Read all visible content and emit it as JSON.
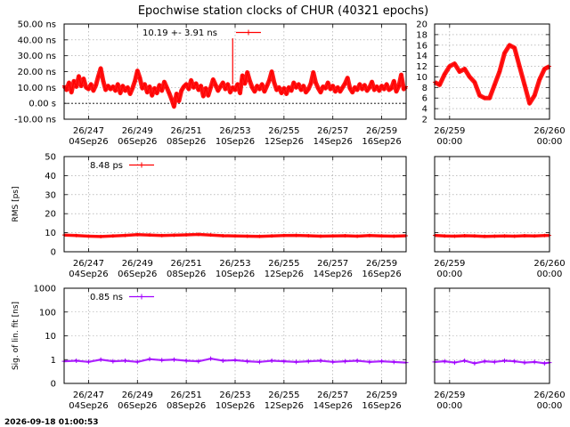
{
  "title": "Epochwise station clocks of CHUR (40321 epochs)",
  "footer_timestamp": "2026-09-18 01:00:53",
  "colors": {
    "clock": "#ff0000",
    "rms": "#ff0000",
    "sig": "#a000ff"
  },
  "chart_data": [
    {
      "id": "clock-main",
      "type": "line",
      "ylabel": "",
      "ylim": [
        -10,
        50
      ],
      "yticks": [
        -10,
        0,
        10,
        20,
        30,
        40,
        50
      ],
      "ytick_labels": [
        "-10.00 ns",
        "0.00  s",
        "10.00 ns",
        "20.00 ns",
        "30.00 ns",
        "40.00 ns",
        "50.00 ns"
      ],
      "xlim": [
        246.0,
        260.0
      ],
      "xticks": [
        247,
        249,
        251,
        253,
        255,
        257,
        259
      ],
      "xtick_labels": [
        [
          "26/247",
          "04Sep26"
        ],
        [
          "26/249",
          "06Sep26"
        ],
        [
          "26/251",
          "08Sep26"
        ],
        [
          "26/253",
          "10Sep26"
        ],
        [
          "26/255",
          "12Sep26"
        ],
        [
          "26/257",
          "14Sep26"
        ],
        [
          "26/259",
          "16Sep26"
        ]
      ],
      "legend_text": "10.19 +-    3.91 ns",
      "zero_line": true,
      "series": [
        {
          "x": [
            246.0,
            246.1,
            246.2,
            246.3,
            246.4,
            246.5,
            246.6,
            246.7,
            246.8,
            246.9,
            247.0,
            247.1,
            247.2,
            247.3,
            247.4,
            247.5,
            247.6,
            247.7,
            247.8,
            247.9,
            248.0,
            248.1,
            248.2,
            248.3,
            248.4,
            248.5,
            248.6,
            248.7,
            248.8,
            248.9,
            249.0,
            249.1,
            249.2,
            249.3,
            249.4,
            249.5,
            249.6,
            249.7,
            249.8,
            249.9,
            250.0,
            250.1,
            250.2,
            250.3,
            250.4,
            250.5,
            250.6,
            250.7,
            250.8,
            250.9,
            251.0,
            251.1,
            251.2,
            251.3,
            251.4,
            251.5,
            251.6,
            251.7,
            251.8,
            251.9,
            252.0,
            252.1,
            252.2,
            252.3,
            252.4,
            252.5,
            252.6,
            252.7,
            252.8,
            252.9,
            253.0,
            253.1,
            253.2,
            253.3,
            253.4,
            253.5,
            253.6,
            253.7,
            253.8,
            253.9,
            254.0,
            254.1,
            254.2,
            254.3,
            254.4,
            254.5,
            254.6,
            254.7,
            254.8,
            254.9,
            255.0,
            255.1,
            255.2,
            255.3,
            255.4,
            255.5,
            255.6,
            255.7,
            255.8,
            255.9,
            256.0,
            256.1,
            256.2,
            256.3,
            256.4,
            256.5,
            256.6,
            256.7,
            256.8,
            256.9,
            257.0,
            257.1,
            257.2,
            257.3,
            257.4,
            257.5,
            257.6,
            257.7,
            257.8,
            257.9,
            258.0,
            258.1,
            258.2,
            258.3,
            258.4,
            258.5,
            258.6,
            258.7,
            258.8,
            258.9,
            259.0,
            259.1,
            259.2,
            259.3,
            259.4,
            259.5,
            259.6,
            259.7,
            259.8,
            259.9,
            260.0
          ],
          "y": [
            11.0,
            8.5,
            13.0,
            7.0,
            14.0,
            10.5,
            17.0,
            11.0,
            15.5,
            10.0,
            9.0,
            12.0,
            8.0,
            11.5,
            17.0,
            22.0,
            14.0,
            8.5,
            11.0,
            9.0,
            10.5,
            8.0,
            12.0,
            6.5,
            11.0,
            8.0,
            10.0,
            6.0,
            9.5,
            14.0,
            20.5,
            16.0,
            9.5,
            12.0,
            7.0,
            10.5,
            5.0,
            9.5,
            6.5,
            11.5,
            8.0,
            13.5,
            10.0,
            6.5,
            2.5,
            -2.0,
            6.0,
            1.5,
            8.0,
            10.5,
            12.0,
            9.0,
            14.5,
            10.0,
            12.5,
            8.5,
            11.0,
            4.5,
            9.5,
            5.0,
            10.0,
            15.0,
            11.5,
            8.0,
            10.5,
            13.0,
            9.0,
            12.0,
            7.0,
            10.0,
            8.5,
            12.0,
            6.5,
            17.5,
            12.5,
            19.5,
            14.0,
            10.0,
            7.5,
            11.0,
            9.0,
            12.0,
            7.5,
            11.0,
            14.5,
            20.0,
            13.0,
            8.5,
            10.0,
            6.5,
            9.5,
            6.0,
            10.0,
            8.0,
            13.0,
            10.0,
            12.0,
            8.5,
            11.0,
            7.0,
            9.0,
            12.5,
            19.5,
            13.0,
            9.5,
            7.0,
            10.5,
            9.5,
            13.0,
            9.0,
            11.0,
            7.5,
            10.0,
            7.5,
            10.0,
            12.5,
            16.0,
            9.5,
            7.0,
            10.0,
            8.5,
            12.0,
            9.0,
            11.5,
            8.0,
            10.0,
            13.5,
            8.5,
            10.5,
            8.0,
            11.0,
            9.0,
            12.0,
            8.5,
            9.5,
            14.0,
            7.5,
            11.0,
            18.0,
            9.0,
            10.5
          ]
        }
      ]
    },
    {
      "id": "clock-zoom",
      "type": "line",
      "ylabel": "",
      "ylim": [
        2,
        20
      ],
      "yticks": [
        2,
        4,
        6,
        8,
        10,
        12,
        14,
        16,
        18,
        20
      ],
      "ytick_labels": [
        "2",
        "4",
        "6",
        "8",
        "10",
        "12",
        "14",
        "16",
        "18",
        "20"
      ],
      "xlim": [
        258.85,
        260.0
      ],
      "xticks": [
        259,
        260
      ],
      "xtick_labels": [
        [
          "26/259",
          "00:00"
        ],
        [
          "26/260",
          "00:00"
        ]
      ],
      "series": [
        {
          "x": [
            258.85,
            258.9,
            258.95,
            259.0,
            259.05,
            259.1,
            259.15,
            259.2,
            259.25,
            259.3,
            259.35,
            259.4,
            259.45,
            259.5,
            259.55,
            259.6,
            259.65,
            259.7,
            259.75,
            259.8,
            259.85,
            259.9,
            259.95,
            260.0
          ],
          "y": [
            9.0,
            8.5,
            10.5,
            12.0,
            12.5,
            11.0,
            11.5,
            10.0,
            9.0,
            6.5,
            6.0,
            6.0,
            8.5,
            11.0,
            14.5,
            16.0,
            15.5,
            12.0,
            8.5,
            5.0,
            6.5,
            9.5,
            11.5,
            12.0
          ]
        }
      ]
    },
    {
      "id": "rms-main",
      "type": "line",
      "ylabel": "RMS [ps]",
      "ylim": [
        0,
        50
      ],
      "yticks": [
        0,
        10,
        20,
        30,
        40,
        50
      ],
      "ytick_labels": [
        "0",
        "10",
        "20",
        "30",
        "40",
        "50"
      ],
      "xlim": [
        246.0,
        260.0
      ],
      "xticks": [
        247,
        249,
        251,
        253,
        255,
        257,
        259
      ],
      "xtick_labels": [
        [
          "26/247",
          "04Sep26"
        ],
        [
          "26/249",
          "06Sep26"
        ],
        [
          "26/251",
          "08Sep26"
        ],
        [
          "26/253",
          "10Sep26"
        ],
        [
          "26/255",
          "12Sep26"
        ],
        [
          "26/257",
          "14Sep26"
        ],
        [
          "26/259",
          "16Sep26"
        ]
      ],
      "legend_text": "8.48 ps",
      "series": [
        {
          "x": [
            246.0,
            246.5,
            247.0,
            247.5,
            248.0,
            248.5,
            249.0,
            249.5,
            250.0,
            250.5,
            251.0,
            251.5,
            252.0,
            252.5,
            253.0,
            253.5,
            254.0,
            254.5,
            255.0,
            255.5,
            256.0,
            256.5,
            257.0,
            257.5,
            258.0,
            258.5,
            259.0,
            259.5,
            260.0
          ],
          "y": [
            8.8,
            8.5,
            8.2,
            8.0,
            8.3,
            8.6,
            9.0,
            8.8,
            8.5,
            8.7,
            8.9,
            9.1,
            8.8,
            8.4,
            8.3,
            8.2,
            8.1,
            8.3,
            8.5,
            8.6,
            8.4,
            8.2,
            8.3,
            8.4,
            8.2,
            8.5,
            8.3,
            8.2,
            8.4
          ]
        }
      ]
    },
    {
      "id": "rms-zoom",
      "type": "line",
      "ylabel": "",
      "ylim": [
        0,
        50
      ],
      "yticks": [
        0,
        10,
        20,
        30,
        40,
        50
      ],
      "ytick_labels": [],
      "xlim": [
        258.85,
        260.0
      ],
      "xticks": [
        259,
        260
      ],
      "xtick_labels": [
        [
          "26/259",
          "00:00"
        ],
        [
          "26/260",
          "00:00"
        ]
      ],
      "series": [
        {
          "x": [
            258.85,
            258.95,
            259.05,
            259.15,
            259.25,
            259.35,
            259.45,
            259.55,
            259.65,
            259.75,
            259.85,
            259.95,
            260.0
          ],
          "y": [
            8.6,
            8.3,
            8.2,
            8.4,
            8.3,
            8.1,
            8.2,
            8.3,
            8.2,
            8.4,
            8.3,
            8.5,
            8.6
          ]
        }
      ]
    },
    {
      "id": "sig-main",
      "type": "scatter",
      "ylabel": "Sig. of lin. fit [ns]",
      "ylog": true,
      "ylim": [
        0.1,
        1000
      ],
      "yticks": [
        0.1,
        1,
        10,
        100,
        1000
      ],
      "ytick_labels": [
        "0",
        "1",
        "10",
        "100",
        "1000"
      ],
      "xlim": [
        246.0,
        260.0
      ],
      "xticks": [
        247,
        249,
        251,
        253,
        255,
        257,
        259
      ],
      "xtick_labels": [
        [
          "26/247",
          "04Sep26"
        ],
        [
          "26/249",
          "06Sep26"
        ],
        [
          "26/251",
          "08Sep26"
        ],
        [
          "26/253",
          "10Sep26"
        ],
        [
          "26/255",
          "12Sep26"
        ],
        [
          "26/257",
          "14Sep26"
        ],
        [
          "26/259",
          "16Sep26"
        ]
      ],
      "legend_text": "0.85 ns",
      "series": [
        {
          "x": [
            246.0,
            246.5,
            247.0,
            247.5,
            248.0,
            248.5,
            249.0,
            249.5,
            250.0,
            250.5,
            251.0,
            251.5,
            252.0,
            252.5,
            253.0,
            253.5,
            254.0,
            254.5,
            255.0,
            255.5,
            256.0,
            256.5,
            257.0,
            257.5,
            258.0,
            258.5,
            259.0,
            259.5,
            260.0
          ],
          "y": [
            0.85,
            0.9,
            0.8,
            1.0,
            0.85,
            0.9,
            0.8,
            1.05,
            0.95,
            1.0,
            0.9,
            0.85,
            1.1,
            0.9,
            0.95,
            0.85,
            0.8,
            0.9,
            0.85,
            0.8,
            0.85,
            0.9,
            0.8,
            0.85,
            0.9,
            0.8,
            0.85,
            0.8,
            0.75
          ]
        }
      ]
    },
    {
      "id": "sig-zoom",
      "type": "scatter",
      "ylabel": "",
      "ylog": true,
      "ylim": [
        0.1,
        1000
      ],
      "yticks": [
        0.1,
        1,
        10,
        100,
        1000
      ],
      "ytick_labels": [],
      "xlim": [
        258.85,
        260.0
      ],
      "xticks": [
        259,
        260
      ],
      "xtick_labels": [
        [
          "26/259",
          "00:00"
        ],
        [
          "26/260",
          "00:00"
        ]
      ],
      "series": [
        {
          "x": [
            258.85,
            258.95,
            259.05,
            259.15,
            259.25,
            259.35,
            259.45,
            259.55,
            259.65,
            259.75,
            259.85,
            259.95,
            260.0
          ],
          "y": [
            0.8,
            0.85,
            0.75,
            0.9,
            0.7,
            0.85,
            0.8,
            0.9,
            0.85,
            0.75,
            0.8,
            0.7,
            0.75
          ]
        }
      ]
    }
  ]
}
